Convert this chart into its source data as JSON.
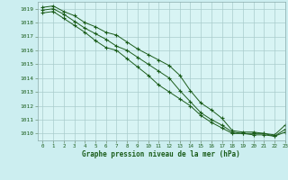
{
  "title": "Graphe pression niveau de la mer (hPa)",
  "background_color": "#cceef0",
  "plot_bg_color": "#d8f4f4",
  "grid_color": "#b8d8d8",
  "line_color": "#1a5c1a",
  "xlim": [
    -0.5,
    23
  ],
  "ylim": [
    1009.5,
    1019.5
  ],
  "yticks": [
    1010,
    1011,
    1012,
    1013,
    1014,
    1015,
    1016,
    1017,
    1018,
    1019
  ],
  "xticks": [
    0,
    1,
    2,
    3,
    4,
    5,
    6,
    7,
    8,
    9,
    10,
    11,
    12,
    13,
    14,
    15,
    16,
    17,
    18,
    19,
    20,
    21,
    22,
    23
  ],
  "series": [
    [
      1019.1,
      1019.2,
      1018.8,
      1018.5,
      1018.0,
      1017.7,
      1017.3,
      1017.1,
      1016.6,
      1016.1,
      1015.7,
      1015.3,
      1014.9,
      1014.2,
      1013.1,
      1012.2,
      1011.7,
      1011.1,
      1010.2,
      1010.1,
      1010.1,
      1010.0,
      1009.9,
      1010.6
    ],
    [
      1018.9,
      1019.0,
      1018.6,
      1018.1,
      1017.6,
      1017.2,
      1016.8,
      1016.3,
      1016.0,
      1015.5,
      1015.0,
      1014.5,
      1014.0,
      1013.1,
      1012.3,
      1011.5,
      1011.0,
      1010.6,
      1010.1,
      1010.0,
      1010.0,
      1010.0,
      1009.8,
      1010.3
    ],
    [
      1018.7,
      1018.8,
      1018.3,
      1017.8,
      1017.3,
      1016.7,
      1016.2,
      1016.0,
      1015.4,
      1014.8,
      1014.2,
      1013.5,
      1013.0,
      1012.5,
      1012.0,
      1011.3,
      1010.8,
      1010.4,
      1010.0,
      1010.0,
      1009.9,
      1009.9,
      1009.8,
      1010.1
    ]
  ]
}
